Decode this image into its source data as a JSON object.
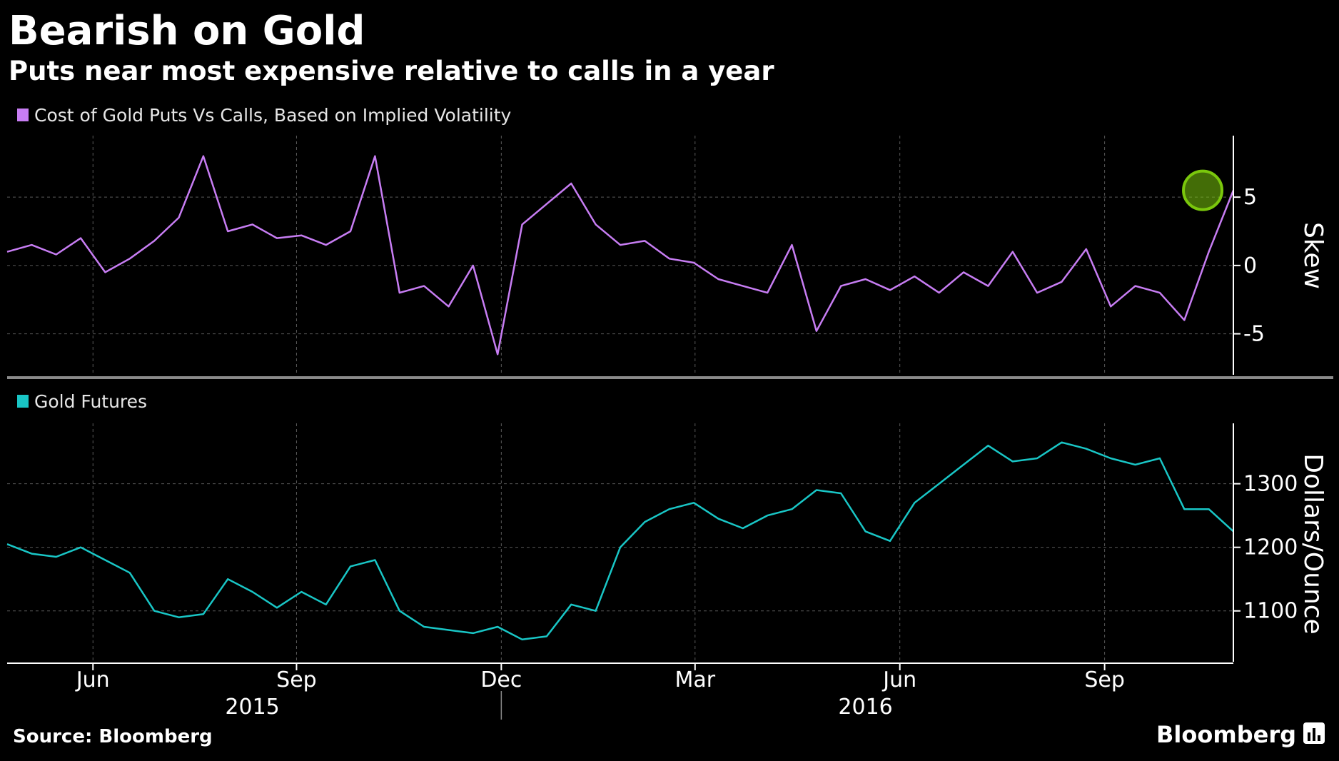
{
  "title": "Bearish on Gold",
  "subtitle": "Puts near most expensive relative to calls in a year",
  "source": "Source: Bloomberg",
  "brand": "Bloomberg",
  "colors": {
    "skew": "#c77df3",
    "gold": "#19c6c6",
    "highlight": "#7ac70c",
    "grid": "#5a5a5a"
  },
  "chart_data": [
    {
      "type": "line",
      "legend": "Cost of Gold Puts Vs Calls, Based on Implied Volatility",
      "ylabel": "Skew",
      "ylim": [
        -8,
        9.5
      ],
      "yticks": [
        {
          "value": 5,
          "label": "5"
        },
        {
          "value": 0,
          "label": "0"
        },
        {
          "value": -5,
          "label": "-5"
        }
      ],
      "xlim": [
        0,
        1
      ],
      "x": [
        0,
        0.02,
        0.04,
        0.06,
        0.08,
        0.1,
        0.12,
        0.14,
        0.16,
        0.18,
        0.2,
        0.22,
        0.24,
        0.26,
        0.28,
        0.3,
        0.32,
        0.34,
        0.36,
        0.38,
        0.4,
        0.42,
        0.44,
        0.46,
        0.48,
        0.5,
        0.52,
        0.54,
        0.56,
        0.58,
        0.6,
        0.62,
        0.64,
        0.66,
        0.68,
        0.7,
        0.72,
        0.74,
        0.76,
        0.78,
        0.8,
        0.82,
        0.84,
        0.86,
        0.88,
        0.9,
        0.92,
        0.94,
        0.96,
        0.98,
        1.0
      ],
      "values": [
        1,
        1.5,
        0.8,
        2,
        -0.5,
        0.5,
        1.8,
        3.5,
        8,
        2.5,
        3,
        2,
        2.2,
        1.5,
        2.5,
        8,
        -2,
        -1.5,
        -3,
        0,
        -6.5,
        3,
        4.5,
        6,
        3,
        1.5,
        1.8,
        0.5,
        0.2,
        -1,
        -1.5,
        -2,
        1.5,
        -4.8,
        -1.5,
        -1,
        -1.8,
        -0.8,
        -2,
        -0.5,
        -1.5,
        1,
        -2,
        -1.2,
        1.2,
        -3,
        -1.5,
        -2,
        -4,
        1,
        5.5
      ],
      "highlight": {
        "x": 0.975,
        "y": 5.5
      }
    },
    {
      "type": "line",
      "legend": "Gold Futures",
      "ylabel": "Dollars/Ounce",
      "ylim": [
        1020,
        1395
      ],
      "yticks": [
        {
          "value": 1300,
          "label": "1300"
        },
        {
          "value": 1200,
          "label": "1200"
        },
        {
          "value": 1100,
          "label": "1100"
        }
      ],
      "xlim": [
        0,
        1
      ],
      "x": [
        0,
        0.02,
        0.04,
        0.06,
        0.08,
        0.1,
        0.12,
        0.14,
        0.16,
        0.18,
        0.2,
        0.22,
        0.24,
        0.26,
        0.28,
        0.3,
        0.32,
        0.34,
        0.36,
        0.38,
        0.4,
        0.42,
        0.44,
        0.46,
        0.48,
        0.5,
        0.52,
        0.54,
        0.56,
        0.58,
        0.6,
        0.62,
        0.64,
        0.66,
        0.68,
        0.7,
        0.72,
        0.74,
        0.76,
        0.78,
        0.8,
        0.82,
        0.84,
        0.86,
        0.88,
        0.9,
        0.92,
        0.94,
        0.96,
        0.98,
        1.0
      ],
      "values": [
        1205,
        1190,
        1185,
        1200,
        1180,
        1160,
        1100,
        1090,
        1095,
        1150,
        1130,
        1105,
        1130,
        1110,
        1170,
        1180,
        1100,
        1075,
        1070,
        1065,
        1075,
        1055,
        1060,
        1110,
        1100,
        1200,
        1240,
        1260,
        1270,
        1245,
        1230,
        1250,
        1260,
        1290,
        1285,
        1225,
        1210,
        1270,
        1300,
        1330,
        1360,
        1335,
        1340,
        1365,
        1355,
        1340,
        1330,
        1340,
        1260,
        1260,
        1225
      ],
      "x_ticks": [
        {
          "pos": 0.07,
          "label": "Jun"
        },
        {
          "pos": 0.236,
          "label": "Sep"
        },
        {
          "pos": 0.403,
          "label": "Dec"
        },
        {
          "pos": 0.561,
          "label": "Mar"
        },
        {
          "pos": 0.728,
          "label": "Jun"
        },
        {
          "pos": 0.895,
          "label": "Sep"
        }
      ],
      "years": [
        {
          "pos": 0.2,
          "label": "2015"
        },
        {
          "pos": 0.7,
          "label": "2016"
        }
      ],
      "year_break": 0.403
    }
  ]
}
